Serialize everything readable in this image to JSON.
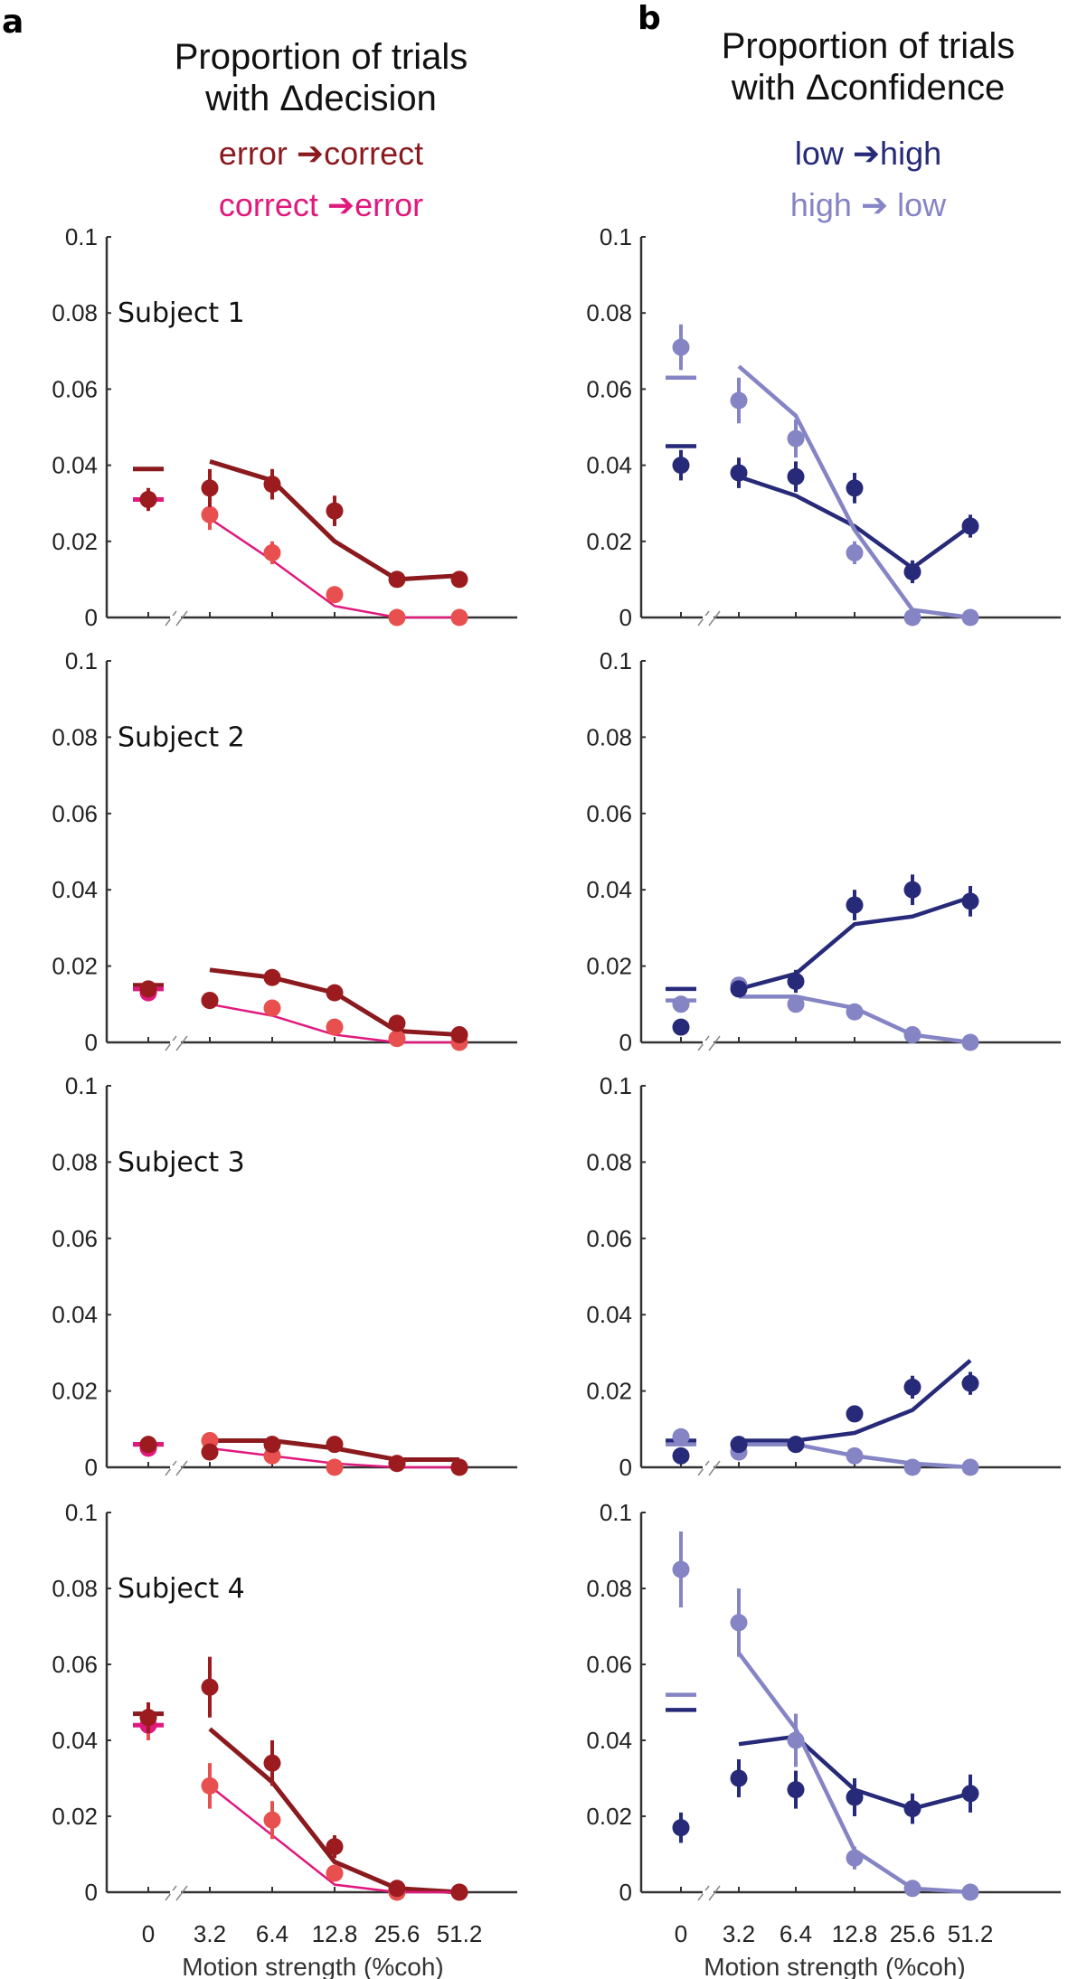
{
  "panels": {
    "a": {
      "letter": "a",
      "title_line1": "Proportion of trials",
      "title_line2": "with Δdecision",
      "legend": [
        {
          "label": "error ➔correct",
          "color": "#8b1a1e"
        },
        {
          "label": "correct ➔error",
          "color": "#e0197d"
        }
      ]
    },
    "b": {
      "letter": "b",
      "title_line1": "Proportion of trials",
      "title_line2": "with Δconfidence",
      "legend": [
        {
          "label": "low ➔high",
          "color": "#262a78"
        },
        {
          "label": "high ➔ low",
          "color": "#8584c4"
        }
      ]
    }
  },
  "chart_data": [
    {
      "type": "line",
      "column": "a",
      "subject": "Subject 1",
      "x": [
        "0",
        "3.2",
        "6.4",
        "12.8",
        "25.6",
        "51.2"
      ],
      "xlabel": "Motion strength (%coh)",
      "ylabel": "",
      "ylim": [
        0,
        0.1
      ],
      "yticks": [
        "0",
        "0.02",
        "0.04",
        "0.06",
        "0.08",
        "0.1"
      ],
      "series": [
        {
          "name": "error → correct (data)",
          "color": "#9b1b1f",
          "values": [
            0.031,
            0.034,
            0.035,
            0.028,
            0.01,
            0.01
          ],
          "err": [
            0.003,
            0.005,
            0.004,
            0.004,
            0.002,
            0.002
          ]
        },
        {
          "name": "correct → error (data)",
          "color": "#e8504f",
          "values": [
            0.031,
            0.027,
            0.017,
            0.006,
            0.0,
            0.0
          ],
          "err": [
            0.003,
            0.004,
            0.003,
            0.002,
            0.001,
            0.001
          ]
        },
        {
          "name": "error → correct (model)",
          "color": "#8b1a1e",
          "values": [
            0.039,
            0.041,
            0.036,
            0.02,
            0.01,
            0.011
          ]
        },
        {
          "name": "correct → error (model)",
          "color": "#e0197d",
          "values": [
            0.031,
            0.026,
            0.015,
            0.003,
            0.0,
            0.0
          ]
        }
      ]
    },
    {
      "type": "line",
      "column": "b",
      "subject": "Subject 1",
      "x": [
        "0",
        "3.2",
        "6.4",
        "12.8",
        "25.6",
        "51.2"
      ],
      "xlabel": "Motion strength (%coh)",
      "ylim": [
        0,
        0.1
      ],
      "yticks": [
        "0",
        "0.02",
        "0.04",
        "0.06",
        "0.08",
        "0.1"
      ],
      "series": [
        {
          "name": "low → high (data)",
          "color": "#262a78",
          "values": [
            0.04,
            0.038,
            0.037,
            0.034,
            0.012,
            0.024
          ],
          "err": [
            0.004,
            0.004,
            0.004,
            0.004,
            0.003,
            0.003
          ]
        },
        {
          "name": "high → low (data)",
          "color": "#8584c4",
          "values": [
            0.071,
            0.057,
            0.047,
            0.017,
            0.0,
            0.0
          ],
          "err": [
            0.006,
            0.006,
            0.005,
            0.003,
            0.001,
            0.001
          ]
        },
        {
          "name": "low → high (model)",
          "color": "#262a78",
          "values": [
            0.045,
            0.037,
            0.032,
            0.024,
            0.013,
            0.024
          ]
        },
        {
          "name": "high → low (model)",
          "color": "#8584c4",
          "values": [
            0.063,
            0.066,
            0.053,
            0.023,
            0.002,
            0.0
          ]
        }
      ]
    },
    {
      "type": "line",
      "column": "a",
      "subject": "Subject 2",
      "x": [
        "0",
        "3.2",
        "6.4",
        "12.8",
        "25.6",
        "51.2"
      ],
      "xlabel": "Motion strength (%coh)",
      "ylim": [
        0,
        0.1
      ],
      "yticks": [
        "0",
        "0.02",
        "0.04",
        "0.06",
        "0.08",
        "0.1"
      ],
      "series": [
        {
          "name": "error → correct (data)",
          "color": "#9b1b1f",
          "values": [
            0.014,
            0.011,
            0.017,
            0.013,
            0.005,
            0.002
          ],
          "err": [
            0.002,
            0.002,
            0.002,
            0.002,
            0.002,
            0.001
          ]
        },
        {
          "name": "correct → error (data)",
          "color": "#e8504f",
          "values": [
            0.013,
            0.011,
            0.009,
            0.004,
            0.001,
            0.0
          ],
          "err": [
            0.002,
            0.002,
            0.002,
            0.002,
            0.001,
            0.001
          ]
        },
        {
          "name": "error → correct (model)",
          "color": "#8b1a1e",
          "values": [
            0.015,
            0.019,
            0.017,
            0.013,
            0.003,
            0.002
          ]
        },
        {
          "name": "correct → error (model)",
          "color": "#e0197d",
          "values": [
            0.014,
            0.01,
            0.007,
            0.002,
            0.0,
            0.0
          ]
        }
      ]
    },
    {
      "type": "line",
      "column": "b",
      "subject": "Subject 2",
      "x": [
        "0",
        "3.2",
        "6.4",
        "12.8",
        "25.6",
        "51.2"
      ],
      "xlabel": "Motion strength (%coh)",
      "ylim": [
        0,
        0.1
      ],
      "yticks": [
        "0",
        "0.02",
        "0.04",
        "0.06",
        "0.08",
        "0.1"
      ],
      "series": [
        {
          "name": "low → high (data)",
          "color": "#262a78",
          "values": [
            0.004,
            0.014,
            0.016,
            0.036,
            0.04,
            0.037
          ],
          "err": [
            0.002,
            0.002,
            0.003,
            0.004,
            0.004,
            0.004
          ]
        },
        {
          "name": "high → low (data)",
          "color": "#8584c4",
          "values": [
            0.01,
            0.015,
            0.01,
            0.008,
            0.002,
            0.0
          ],
          "err": [
            0.002,
            0.002,
            0.002,
            0.002,
            0.001,
            0.001
          ]
        },
        {
          "name": "low → high (model)",
          "color": "#262a78",
          "values": [
            0.014,
            0.014,
            0.018,
            0.031,
            0.033,
            0.038
          ]
        },
        {
          "name": "high → low (model)",
          "color": "#8584c4",
          "values": [
            0.011,
            0.012,
            0.012,
            0.009,
            0.002,
            0.0
          ]
        }
      ]
    },
    {
      "type": "line",
      "column": "a",
      "subject": "Subject 3",
      "x": [
        "0",
        "3.2",
        "6.4",
        "12.8",
        "25.6",
        "51.2"
      ],
      "xlabel": "Motion strength (%coh)",
      "ylim": [
        0,
        0.1
      ],
      "yticks": [
        "0",
        "0.02",
        "0.04",
        "0.06",
        "0.08",
        "0.1"
      ],
      "series": [
        {
          "name": "error → correct (data)",
          "color": "#9b1b1f",
          "values": [
            0.006,
            0.004,
            0.006,
            0.006,
            0.001,
            0.0
          ],
          "err": [
            0.001,
            0.001,
            0.001,
            0.001,
            0.001,
            0.001
          ]
        },
        {
          "name": "correct → error (data)",
          "color": "#e8504f",
          "values": [
            0.005,
            0.007,
            0.003,
            0.0,
            0.001,
            0.0
          ],
          "err": [
            0.001,
            0.001,
            0.001,
            0.001,
            0.001,
            0.001
          ]
        },
        {
          "name": "error → correct (model)",
          "color": "#8b1a1e",
          "values": [
            0.006,
            0.007,
            0.007,
            0.005,
            0.002,
            0.002
          ]
        },
        {
          "name": "correct → error (model)",
          "color": "#e0197d",
          "values": [
            0.006,
            0.005,
            0.003,
            0.001,
            0.0,
            0.0
          ]
        }
      ]
    },
    {
      "type": "line",
      "column": "b",
      "subject": "Subject 3",
      "x": [
        "0",
        "3.2",
        "6.4",
        "12.8",
        "25.6",
        "51.2"
      ],
      "xlabel": "Motion strength (%coh)",
      "ylim": [
        0,
        0.1
      ],
      "yticks": [
        "0",
        "0.02",
        "0.04",
        "0.06",
        "0.08",
        "0.1"
      ],
      "series": [
        {
          "name": "low → high (data)",
          "color": "#262a78",
          "values": [
            0.003,
            0.006,
            0.006,
            0.014,
            0.021,
            0.022
          ],
          "err": [
            0.002,
            0.002,
            0.002,
            0.002,
            0.003,
            0.003
          ]
        },
        {
          "name": "high → low (data)",
          "color": "#8584c4",
          "values": [
            0.008,
            0.004,
            0.006,
            0.003,
            0.0,
            0.0
          ],
          "err": [
            0.002,
            0.001,
            0.001,
            0.001,
            0.001,
            0.001
          ]
        },
        {
          "name": "low → high (model)",
          "color": "#262a78",
          "values": [
            0.007,
            0.007,
            0.007,
            0.009,
            0.015,
            0.028
          ]
        },
        {
          "name": "high → low (model)",
          "color": "#8584c4",
          "values": [
            0.006,
            0.006,
            0.006,
            0.003,
            0.001,
            0.0
          ]
        }
      ]
    },
    {
      "type": "line",
      "column": "a",
      "subject": "Subject 4",
      "x": [
        "0",
        "3.2",
        "6.4",
        "12.8",
        "25.6",
        "51.2"
      ],
      "xlabel": "Motion strength (%coh)",
      "ylim": [
        0,
        0.1
      ],
      "yticks": [
        "0",
        "0.02",
        "0.04",
        "0.06",
        "0.08",
        "0.1"
      ],
      "series": [
        {
          "name": "error → correct (data)",
          "color": "#9b1b1f",
          "values": [
            0.046,
            0.054,
            0.034,
            0.012,
            0.001,
            0.0
          ],
          "err": [
            0.004,
            0.008,
            0.006,
            0.003,
            0.001,
            0.001
          ]
        },
        {
          "name": "correct → error (data)",
          "color": "#e8504f",
          "values": [
            0.044,
            0.028,
            0.019,
            0.005,
            0.0,
            0.0
          ],
          "err": [
            0.004,
            0.006,
            0.005,
            0.002,
            0.001,
            0.001
          ]
        },
        {
          "name": "error → correct (model)",
          "color": "#8b1a1e",
          "values": [
            0.047,
            0.043,
            0.029,
            0.008,
            0.001,
            0.0
          ]
        },
        {
          "name": "correct → error (model)",
          "color": "#e0197d",
          "values": [
            0.044,
            0.028,
            0.015,
            0.002,
            0.0,
            0.0
          ]
        }
      ]
    },
    {
      "type": "line",
      "column": "b",
      "subject": "Subject 4",
      "x": [
        "0",
        "3.2",
        "6.4",
        "12.8",
        "25.6",
        "51.2"
      ],
      "xlabel": "Motion strength (%coh)",
      "ylim": [
        0,
        0.1
      ],
      "yticks": [
        "0",
        "0.02",
        "0.04",
        "0.06",
        "0.08",
        "0.1"
      ],
      "series": [
        {
          "name": "low → high (data)",
          "color": "#262a78",
          "values": [
            0.017,
            0.03,
            0.027,
            0.025,
            0.022,
            0.026
          ],
          "err": [
            0.004,
            0.005,
            0.005,
            0.005,
            0.004,
            0.005
          ]
        },
        {
          "name": "high → low (data)",
          "color": "#8584c4",
          "values": [
            0.085,
            0.071,
            0.04,
            0.009,
            0.001,
            0.0
          ],
          "err": [
            0.01,
            0.009,
            0.007,
            0.003,
            0.001,
            0.001
          ]
        },
        {
          "name": "low → high (model)",
          "color": "#262a78",
          "values": [
            0.048,
            0.039,
            0.041,
            0.027,
            0.022,
            0.026
          ]
        },
        {
          "name": "high → low (model)",
          "color": "#8584c4",
          "values": [
            0.052,
            0.063,
            0.043,
            0.011,
            0.001,
            0.0
          ]
        }
      ]
    }
  ]
}
